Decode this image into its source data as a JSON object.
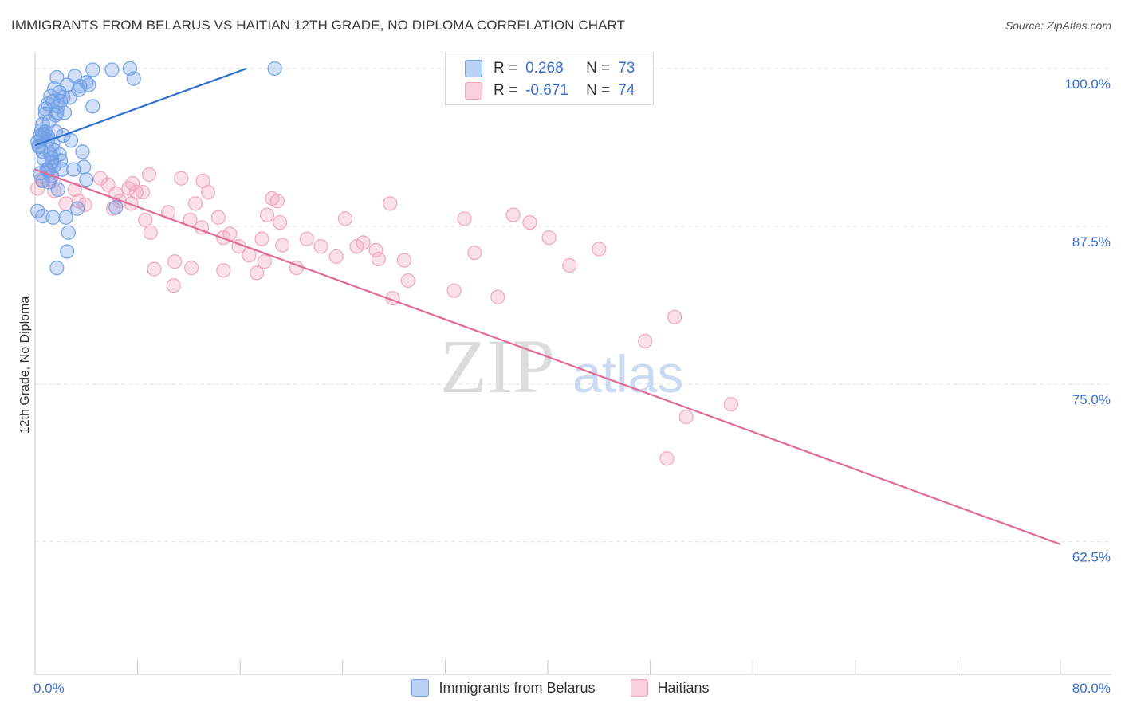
{
  "title": "IMMIGRANTS FROM BELARUS VS HAITIAN 12TH GRADE, NO DIPLOMA CORRELATION CHART",
  "source": "Source: ZipAtlas.com",
  "watermark": {
    "zip": "ZIP",
    "atlas": "atlas"
  },
  "legend_top": [
    {
      "r_label": "R =",
      "r_value": "0.268",
      "n_label": "N =",
      "n_value": "73"
    },
    {
      "r_label": "R =",
      "r_value": "-0.671",
      "n_label": "N =",
      "n_value": "74"
    }
  ],
  "legend_bottom": [
    {
      "label": "Immigrants from Belarus"
    },
    {
      "label": "Haitians"
    }
  ],
  "chart_data": {
    "type": "scatter",
    "title": "IMMIGRANTS FROM BELARUS VS HAITIAN 12TH GRADE, NO DIPLOMA CORRELATION CHART",
    "xlabel": "",
    "ylabel": "12th Grade, No Diploma",
    "xlim": [
      0,
      80
    ],
    "ylim": [
      52,
      100.5
    ],
    "x_tick_labels": [
      "0.0%",
      "80.0%"
    ],
    "y_ticks": [
      100,
      87.5,
      75,
      62.5
    ],
    "y_tick_labels": [
      "100.0%",
      "87.5%",
      "75.0%",
      "62.5%"
    ],
    "colors": {
      "belarus": "#6f9fe6",
      "haitians": "#f0a3ba",
      "belarus_line": "#2f6fd0",
      "haitians_line": "#e06a98",
      "tick_text": "#3a6fd0"
    },
    "series": [
      {
        "name": "Immigrants from Belarus",
        "r": 0.268,
        "n": 73,
        "trend": {
          "x": [
            0,
            16.5
          ],
          "y": [
            93.9,
            100
          ]
        },
        "points": [
          [
            1.7,
            99.3
          ],
          [
            3.1,
            99.4
          ],
          [
            4.2,
            98.7
          ],
          [
            4.5,
            99.9
          ],
          [
            6.0,
            99.9
          ],
          [
            7.4,
            100
          ],
          [
            7.7,
            99.2
          ],
          [
            18.7,
            100
          ],
          [
            1.5,
            98.4
          ],
          [
            2.5,
            98.7
          ],
          [
            3.4,
            98.3
          ],
          [
            4.0,
            98.9
          ],
          [
            1.2,
            97.8
          ],
          [
            1.4,
            97.4
          ],
          [
            2.0,
            97.4
          ],
          [
            2.2,
            97.7
          ],
          [
            1.8,
            97.0
          ],
          [
            1.0,
            97.2
          ],
          [
            2.3,
            96.5
          ],
          [
            1.6,
            96.3
          ],
          [
            4.5,
            97.0
          ],
          [
            0.8,
            96.4
          ],
          [
            1.1,
            95.8
          ],
          [
            1.6,
            95.0
          ],
          [
            0.6,
            95.6
          ],
          [
            0.8,
            95.0
          ],
          [
            0.4,
            94.7
          ],
          [
            0.2,
            94.2
          ],
          [
            0.5,
            94.5
          ],
          [
            1.0,
            94.6
          ],
          [
            2.2,
            94.7
          ],
          [
            1.4,
            94.0
          ],
          [
            0.3,
            93.8
          ],
          [
            0.6,
            93.4
          ],
          [
            1.2,
            93.2
          ],
          [
            1.9,
            93.2
          ],
          [
            0.7,
            92.8
          ],
          [
            1.3,
            92.6
          ],
          [
            2.0,
            92.7
          ],
          [
            3.7,
            93.4
          ],
          [
            1.5,
            92.3
          ],
          [
            1.0,
            91.9
          ],
          [
            3.0,
            92.0
          ],
          [
            3.8,
            92.2
          ],
          [
            1.3,
            91.5
          ],
          [
            0.6,
            91.1
          ],
          [
            4.0,
            91.2
          ],
          [
            1.8,
            90.4
          ],
          [
            3.3,
            88.9
          ],
          [
            0.6,
            88.3
          ],
          [
            1.4,
            88.2
          ],
          [
            2.4,
            88.2
          ],
          [
            0.2,
            88.7
          ],
          [
            2.6,
            87.0
          ],
          [
            2.5,
            85.5
          ],
          [
            1.7,
            84.2
          ],
          [
            6.3,
            89.0
          ],
          [
            0.4,
            91.7
          ],
          [
            1.1,
            91.0
          ],
          [
            0.9,
            92.0
          ],
          [
            2.8,
            94.3
          ],
          [
            0.5,
            95.1
          ],
          [
            1.7,
            96.5
          ],
          [
            0.3,
            93.9
          ],
          [
            1.0,
            94.3
          ],
          [
            1.5,
            93.5
          ],
          [
            2.1,
            92.0
          ],
          [
            0.8,
            96.8
          ],
          [
            3.5,
            98.6
          ],
          [
            1.9,
            98.1
          ],
          [
            2.7,
            97.7
          ],
          [
            0.6,
            94.8
          ],
          [
            1.3,
            92.9
          ]
        ]
      },
      {
        "name": "Haitians",
        "r": -0.671,
        "n": 74,
        "trend": {
          "x": [
            0,
            80
          ],
          "y": [
            92.0,
            62.3
          ]
        },
        "points": [
          [
            1.0,
            92.0
          ],
          [
            0.5,
            91.2
          ],
          [
            1.4,
            91.1
          ],
          [
            1.5,
            90.3
          ],
          [
            0.2,
            90.5
          ],
          [
            2.4,
            89.3
          ],
          [
            3.1,
            90.4
          ],
          [
            3.4,
            89.5
          ],
          [
            3.9,
            89.2
          ],
          [
            5.1,
            91.3
          ],
          [
            5.7,
            90.8
          ],
          [
            6.1,
            88.9
          ],
          [
            6.6,
            89.5
          ],
          [
            6.3,
            90.1
          ],
          [
            7.3,
            90.5
          ],
          [
            8.4,
            90.2
          ],
          [
            7.5,
            89.3
          ],
          [
            7.6,
            90.9
          ],
          [
            7.9,
            90.2
          ],
          [
            8.6,
            88.0
          ],
          [
            9.0,
            87.0
          ],
          [
            8.9,
            91.6
          ],
          [
            9.3,
            84.1
          ],
          [
            10.4,
            88.6
          ],
          [
            10.8,
            82.8
          ],
          [
            10.9,
            84.7
          ],
          [
            11.4,
            91.3
          ],
          [
            12.1,
            88.0
          ],
          [
            12.5,
            89.3
          ],
          [
            13.0,
            87.4
          ],
          [
            12.2,
            84.2
          ],
          [
            13.5,
            90.2
          ],
          [
            13.1,
            91.1
          ],
          [
            14.3,
            88.2
          ],
          [
            14.7,
            86.6
          ],
          [
            14.7,
            84.0
          ],
          [
            15.2,
            86.9
          ],
          [
            15.9,
            85.9
          ],
          [
            16.7,
            85.2
          ],
          [
            17.9,
            84.7
          ],
          [
            18.1,
            88.4
          ],
          [
            17.7,
            86.5
          ],
          [
            17.3,
            83.8
          ],
          [
            18.5,
            89.7
          ],
          [
            18.9,
            89.5
          ],
          [
            19.1,
            87.8
          ],
          [
            19.3,
            86.0
          ],
          [
            20.4,
            84.2
          ],
          [
            21.2,
            86.5
          ],
          [
            22.3,
            85.9
          ],
          [
            23.5,
            85.1
          ],
          [
            24.2,
            88.1
          ],
          [
            25.1,
            85.9
          ],
          [
            25.6,
            86.2
          ],
          [
            26.6,
            85.6
          ],
          [
            26.8,
            84.9
          ],
          [
            27.9,
            81.8
          ],
          [
            27.7,
            89.3
          ],
          [
            28.8,
            84.8
          ],
          [
            29.1,
            83.2
          ],
          [
            32.7,
            82.4
          ],
          [
            33.5,
            88.1
          ],
          [
            34.3,
            85.4
          ],
          [
            36.1,
            81.9
          ],
          [
            37.3,
            88.4
          ],
          [
            38.6,
            87.8
          ],
          [
            40.1,
            86.6
          ],
          [
            41.7,
            84.4
          ],
          [
            44.0,
            85.7
          ],
          [
            47.6,
            78.4
          ],
          [
            54.3,
            73.4
          ],
          [
            50.8,
            72.4
          ],
          [
            49.3,
            69.1
          ],
          [
            49.9,
            80.3
          ]
        ]
      }
    ]
  }
}
